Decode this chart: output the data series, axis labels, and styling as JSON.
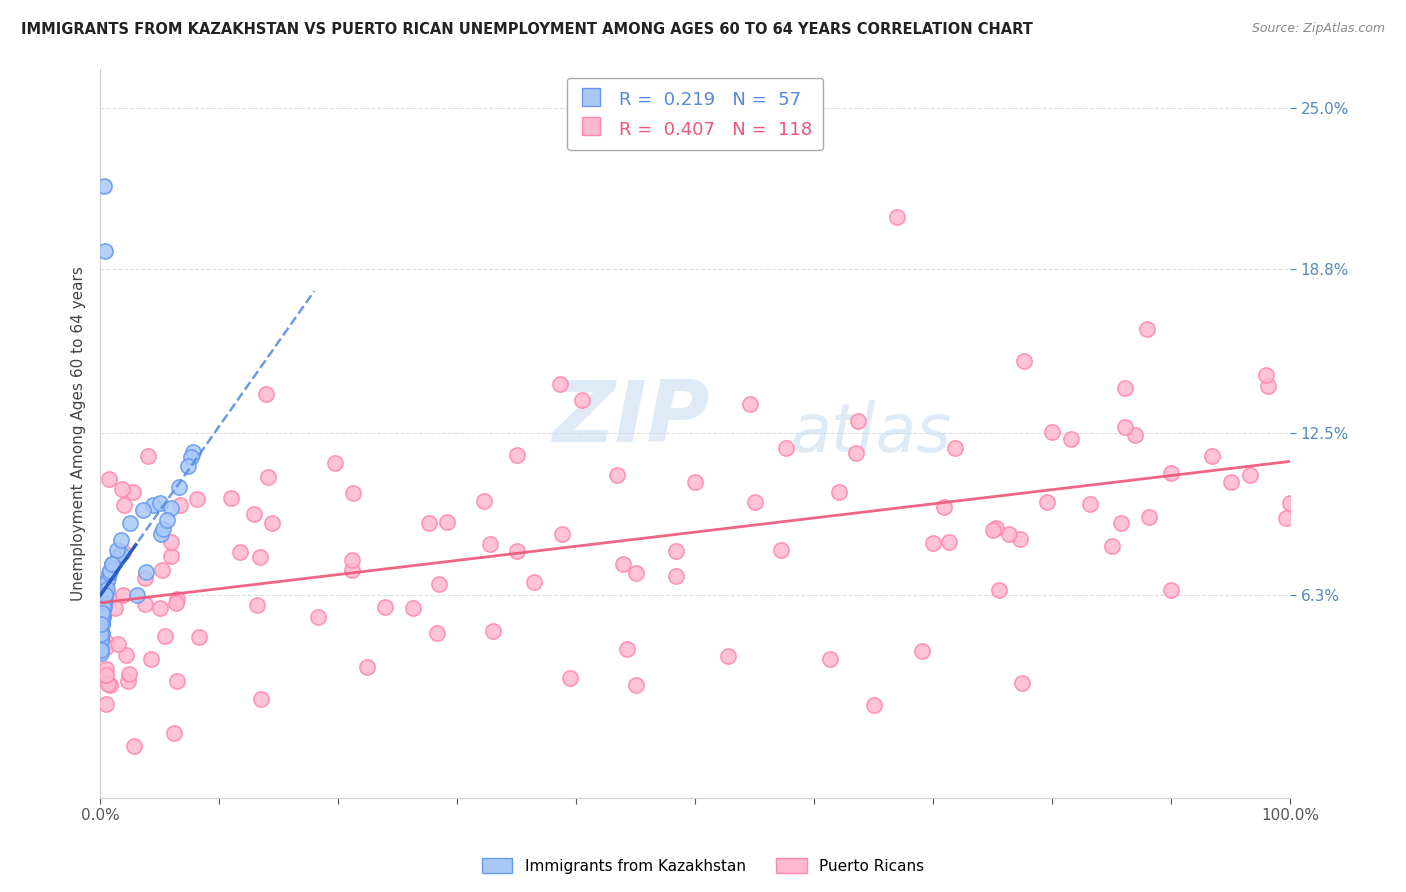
{
  "title": "IMMIGRANTS FROM KAZAKHSTAN VS PUERTO RICAN UNEMPLOYMENT AMONG AGES 60 TO 64 YEARS CORRELATION CHART",
  "source": "Source: ZipAtlas.com",
  "ylabel": "Unemployment Among Ages 60 to 64 years",
  "xlim": [
    0,
    100
  ],
  "ylim": [
    -1.5,
    26.5
  ],
  "yticks": [
    6.3,
    12.5,
    18.8,
    25.0
  ],
  "ytick_labels": [
    "6.3%",
    "12.5%",
    "18.8%",
    "25.0%"
  ],
  "xtick_labels": [
    "0.0%",
    "",
    "",
    "",
    "",
    "",
    "",
    "",
    "",
    "",
    "100.0%"
  ],
  "legend_r1_text": "R =  0.219   N =  57",
  "legend_r2_text": "R =  0.407   N =  118",
  "series1_label": "Immigrants from Kazakhstan",
  "series2_label": "Puerto Ricans",
  "series1_color": "#a8c8f8",
  "series1_edge_color": "#6699ee",
  "series2_color": "#ffb8d0",
  "series2_edge_color": "#ff88aa",
  "trend1_color": "#5588dd",
  "trend2_color": "#ee5577",
  "series1_R": 0.219,
  "series1_N": 57,
  "series2_R": 0.407,
  "series2_N": 118,
  "watermark_zip": "ZIP",
  "watermark_atlas": "atlas",
  "background_color": "#ffffff",
  "grid_color": "#dddddd",
  "tick_color": "#6699cc",
  "ytick_color": "#5588bb"
}
